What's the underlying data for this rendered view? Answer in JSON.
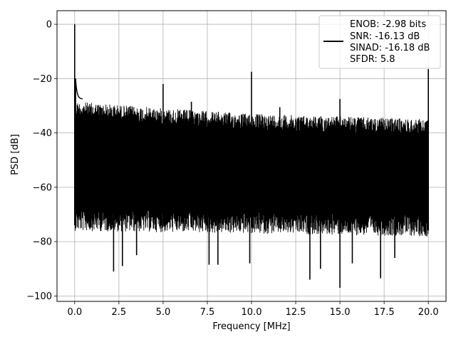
{
  "chart_data": {
    "type": "line",
    "title": "",
    "xlabel": "Frequency [MHz]",
    "ylabel": "PSD [dB]",
    "xlim": [
      -1.0,
      21.0
    ],
    "ylim": [
      -102.0,
      5.0
    ],
    "xticks": [
      0.0,
      2.5,
      5.0,
      7.5,
      10.0,
      12.5,
      15.0,
      17.5,
      20.0
    ],
    "xtick_labels": [
      "0.0",
      "2.5",
      "5.0",
      "7.5",
      "10.0",
      "12.5",
      "15.0",
      "17.5",
      "20.0"
    ],
    "yticks": [
      0,
      -20,
      -40,
      -60,
      -80,
      -100
    ],
    "ytick_labels": [
      "0",
      "−20",
      "−40",
      "−60",
      "−80",
      "−100"
    ],
    "grid": true,
    "legend_position": "top-right",
    "line_color": "#000000",
    "legend": [
      "ENOB: -2.98 bits",
      "SNR: -16.13 dB",
      "SINAD: -16.18 dB",
      "SFDR: 5.8"
    ],
    "series": [
      {
        "noise_floor_upper": [
          [
            0.0,
            -27.5
          ],
          [
            5.0,
            -30.0
          ],
          [
            10.0,
            -32.0
          ],
          [
            15.0,
            -33.0
          ],
          [
            20.0,
            -34.0
          ]
        ],
        "noise_floor_lower": [
          [
            0.0,
            -74.0
          ],
          [
            20.0,
            -76.0
          ]
        ],
        "peaks": [
          {
            "x": 0.0,
            "y": 0.0
          },
          {
            "x": 0.05,
            "y": -20.0
          },
          {
            "x": 5.0,
            "y": -22.0
          },
          {
            "x": 6.6,
            "y": -28.5
          },
          {
            "x": 10.0,
            "y": -17.5
          },
          {
            "x": 11.6,
            "y": -30.5
          },
          {
            "x": 15.0,
            "y": -27.5
          },
          {
            "x": 20.0,
            "y": -16.5
          }
        ],
        "dips": [
          {
            "x": 2.2,
            "y": -91.0
          },
          {
            "x": 2.7,
            "y": -89.0
          },
          {
            "x": 3.5,
            "y": -85.0
          },
          {
            "x": 7.6,
            "y": -88.5
          },
          {
            "x": 8.1,
            "y": -88.5
          },
          {
            "x": 9.9,
            "y": -88.0
          },
          {
            "x": 13.3,
            "y": -94.0
          },
          {
            "x": 13.9,
            "y": -90.0
          },
          {
            "x": 15.0,
            "y": -97.0
          },
          {
            "x": 15.7,
            "y": -88.0
          },
          {
            "x": 17.3,
            "y": -93.5
          },
          {
            "x": 18.1,
            "y": -86.0
          }
        ]
      }
    ]
  }
}
